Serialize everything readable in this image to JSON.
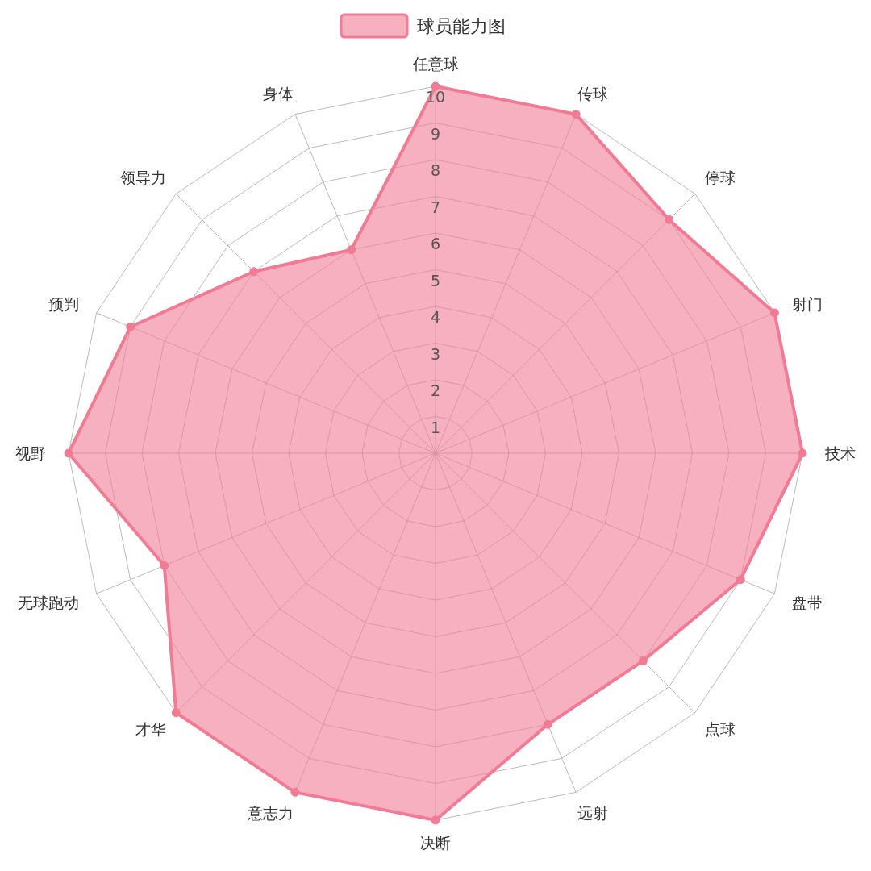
{
  "chart_data": {
    "type": "radar",
    "categories": [
      "任意球",
      "传球",
      "停球",
      "射门",
      "技术",
      "盘带",
      "点球",
      "远射",
      "决断",
      "意志力",
      "才华",
      "无球跑动",
      "视野",
      "预判",
      "领导力",
      "身体"
    ],
    "series": [
      {
        "name": "球员能力图",
        "color": "#f27b94",
        "values": [
          10,
          10,
          9,
          10,
          10,
          9,
          8,
          8,
          10,
          10,
          10,
          8,
          10,
          9,
          7,
          6
        ]
      }
    ],
    "ylim": [
      0,
      10
    ],
    "yticks": [
      1,
      2,
      3,
      4,
      5,
      6,
      7,
      8,
      9,
      10
    ],
    "grid": true,
    "legend": "top",
    "marker": "circle"
  }
}
